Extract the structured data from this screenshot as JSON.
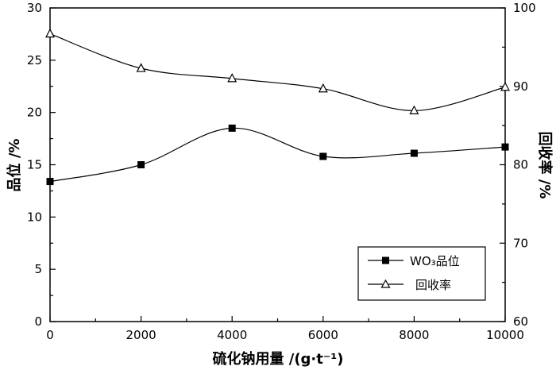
{
  "chart_data": {
    "type": "line",
    "x": [
      0,
      2000,
      4000,
      6000,
      8000,
      10000
    ],
    "xlabel": "硫化钠用量 /(g·t⁻¹)",
    "xlim": [
      0,
      10000
    ],
    "xticks": [
      "0",
      "2000",
      "4000",
      "6000",
      "8000",
      "10000"
    ],
    "ylabel_left": "品位 /%",
    "ylim_left": [
      0,
      30
    ],
    "yticks_left": [
      "0",
      "5",
      "10",
      "15",
      "20",
      "25",
      "30"
    ],
    "ylabel_right": "回收率 /%",
    "ylim_right": [
      60,
      100
    ],
    "yticks_right": [
      "60",
      "70",
      "80",
      "90",
      "100"
    ],
    "series": [
      {
        "name": "WO₃品位",
        "axis": "left",
        "marker": "filled-square",
        "values": [
          13.4,
          15.0,
          18.5,
          15.8,
          16.1,
          16.7
        ]
      },
      {
        "name": "回收率",
        "axis": "right",
        "marker": "open-triangle",
        "values": [
          96.7,
          92.3,
          91.0,
          89.7,
          86.9,
          89.9
        ]
      }
    ],
    "grid": false,
    "legend_position": "bottom-right"
  }
}
